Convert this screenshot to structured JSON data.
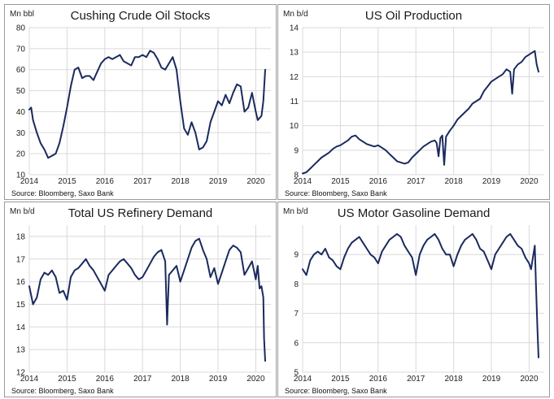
{
  "colors": {
    "line": "#1b2a5e",
    "grid": "#d9d9d9",
    "frame": "#9a9a9a",
    "text": "#222222"
  },
  "chart_data": [
    {
      "type": "line",
      "title": "Cushing Crude Oil Stocks",
      "ylabel": "Mn bbl",
      "source": "Source: Bloomberg, Saxo Bank",
      "xlim": [
        2014,
        2020.4
      ],
      "ylim": [
        10,
        80
      ],
      "yticks": [
        10,
        20,
        30,
        40,
        50,
        60,
        70,
        80
      ],
      "xticks": [
        2014,
        2015,
        2016,
        2017,
        2018,
        2019,
        2020
      ],
      "grid": true,
      "series": [
        {
          "x": [
            2014.0,
            2014.05,
            2014.1,
            2014.2,
            2014.3,
            2014.4,
            2014.45,
            2014.5,
            2014.6,
            2014.7,
            2014.8,
            2014.9,
            2015.0,
            2015.1,
            2015.2,
            2015.3,
            2015.4,
            2015.5,
            2015.6,
            2015.7,
            2015.8,
            2015.9,
            2016.0,
            2016.1,
            2016.2,
            2016.3,
            2016.4,
            2016.5,
            2016.6,
            2016.7,
            2016.8,
            2016.9,
            2017.0,
            2017.1,
            2017.2,
            2017.3,
            2017.4,
            2017.5,
            2017.6,
            2017.7,
            2017.8,
            2017.9,
            2018.0,
            2018.1,
            2018.2,
            2018.3,
            2018.4,
            2018.5,
            2018.6,
            2018.7,
            2018.8,
            2018.9,
            2019.0,
            2019.1,
            2019.2,
            2019.3,
            2019.4,
            2019.5,
            2019.6,
            2019.7,
            2019.8,
            2019.9,
            2020.0,
            2020.05,
            2020.1,
            2020.15,
            2020.2,
            2020.25
          ],
          "y": [
            41,
            42,
            36,
            30,
            25,
            22,
            20,
            18,
            19,
            20,
            25,
            33,
            42,
            52,
            60,
            61,
            56,
            57,
            57,
            55,
            59,
            63,
            65,
            66,
            65,
            66,
            67,
            64,
            63,
            62,
            66,
            66,
            67,
            66,
            69,
            68,
            65,
            61,
            60,
            63,
            66,
            60,
            45,
            32,
            29,
            35,
            30,
            22,
            23,
            26,
            35,
            40,
            45,
            43,
            48,
            44,
            49,
            53,
            52,
            40,
            42,
            49,
            40,
            36,
            37,
            38,
            45,
            60
          ]
        }
      ]
    },
    {
      "type": "line",
      "title": "US Oil Production",
      "ylabel": "Mn b/d",
      "source": "Source: Bloomberg, Saxo Bank",
      "xlim": [
        2014,
        2020.4
      ],
      "ylim": [
        8,
        14
      ],
      "yticks": [
        8,
        9,
        10,
        11,
        12,
        13,
        14
      ],
      "xticks": [
        2014,
        2015,
        2016,
        2017,
        2018,
        2019,
        2020
      ],
      "grid": true,
      "series": [
        {
          "x": [
            2014.0,
            2014.1,
            2014.2,
            2014.3,
            2014.4,
            2014.5,
            2014.6,
            2014.7,
            2014.8,
            2014.9,
            2015.0,
            2015.1,
            2015.2,
            2015.3,
            2015.4,
            2015.5,
            2015.6,
            2015.7,
            2015.8,
            2015.9,
            2016.0,
            2016.1,
            2016.2,
            2016.3,
            2016.4,
            2016.5,
            2016.6,
            2016.7,
            2016.8,
            2016.9,
            2017.0,
            2017.1,
            2017.2,
            2017.3,
            2017.4,
            2017.5,
            2017.55,
            2017.6,
            2017.65,
            2017.7,
            2017.75,
            2017.8,
            2017.9,
            2018.0,
            2018.1,
            2018.2,
            2018.3,
            2018.4,
            2018.5,
            2018.6,
            2018.7,
            2018.8,
            2018.9,
            2019.0,
            2019.1,
            2019.2,
            2019.3,
            2019.4,
            2019.5,
            2019.55,
            2019.6,
            2019.65,
            2019.7,
            2019.8,
            2019.9,
            2020.0,
            2020.1,
            2020.15,
            2020.2,
            2020.25
          ],
          "y": [
            8.05,
            8.1,
            8.25,
            8.4,
            8.55,
            8.7,
            8.8,
            8.9,
            9.05,
            9.15,
            9.2,
            9.3,
            9.4,
            9.55,
            9.6,
            9.45,
            9.35,
            9.25,
            9.2,
            9.15,
            9.2,
            9.1,
            9.0,
            8.85,
            8.7,
            8.55,
            8.5,
            8.45,
            8.5,
            8.7,
            8.85,
            9.0,
            9.15,
            9.25,
            9.35,
            9.4,
            9.3,
            8.75,
            9.5,
            9.6,
            8.4,
            9.55,
            9.8,
            10.0,
            10.25,
            10.4,
            10.55,
            10.7,
            10.9,
            11.0,
            11.1,
            11.4,
            11.6,
            11.8,
            11.9,
            12.0,
            12.1,
            12.3,
            12.2,
            11.3,
            12.3,
            12.4,
            12.5,
            12.6,
            12.8,
            12.9,
            13.0,
            13.05,
            12.5,
            12.2
          ]
        }
      ]
    },
    {
      "type": "line",
      "title": "Total US Refinery Demand",
      "ylabel": "Mn b/d",
      "source": "Source: Bloomberg, Saxo Bank",
      "xlim": [
        2014,
        2020.4
      ],
      "ylim": [
        12,
        18.5
      ],
      "yticks": [
        12,
        13,
        14,
        15,
        16,
        17,
        18
      ],
      "xticks": [
        2014,
        2015,
        2016,
        2017,
        2018,
        2019,
        2020
      ],
      "grid": true,
      "series": [
        {
          "x": [
            2014.0,
            2014.1,
            2014.2,
            2014.3,
            2014.4,
            2014.5,
            2014.6,
            2014.7,
            2014.8,
            2014.9,
            2015.0,
            2015.1,
            2015.2,
            2015.3,
            2015.4,
            2015.5,
            2015.6,
            2015.7,
            2015.8,
            2015.9,
            2016.0,
            2016.1,
            2016.2,
            2016.3,
            2016.4,
            2016.5,
            2016.6,
            2016.7,
            2016.8,
            2016.9,
            2017.0,
            2017.1,
            2017.2,
            2017.3,
            2017.4,
            2017.5,
            2017.6,
            2017.65,
            2017.7,
            2017.8,
            2017.9,
            2018.0,
            2018.1,
            2018.2,
            2018.3,
            2018.4,
            2018.5,
            2018.6,
            2018.7,
            2018.8,
            2018.9,
            2019.0,
            2019.1,
            2019.2,
            2019.3,
            2019.4,
            2019.5,
            2019.6,
            2019.7,
            2019.8,
            2019.9,
            2020.0,
            2020.05,
            2020.1,
            2020.15,
            2020.2,
            2020.22,
            2020.25
          ],
          "y": [
            15.8,
            15.0,
            15.3,
            16.1,
            16.4,
            16.3,
            16.5,
            16.2,
            15.5,
            15.6,
            15.2,
            16.2,
            16.5,
            16.6,
            16.8,
            17.0,
            16.7,
            16.5,
            16.2,
            15.9,
            15.6,
            16.3,
            16.5,
            16.7,
            16.9,
            17.0,
            16.8,
            16.6,
            16.3,
            16.1,
            16.2,
            16.5,
            16.8,
            17.1,
            17.3,
            17.4,
            16.9,
            14.1,
            16.3,
            16.5,
            16.7,
            16.0,
            16.5,
            17.0,
            17.5,
            17.8,
            17.9,
            17.4,
            17.0,
            16.2,
            16.6,
            15.9,
            16.4,
            16.9,
            17.4,
            17.6,
            17.5,
            17.3,
            16.3,
            16.6,
            16.9,
            16.1,
            16.7,
            15.7,
            15.8,
            15.3,
            13.5,
            12.5
          ]
        }
      ]
    },
    {
      "type": "line",
      "title": "US Motor Gasoline Demand",
      "ylabel": "Mn b/d",
      "source": "Source: Bloomberg, Saxo Bank",
      "xlim": [
        2014,
        2020.4
      ],
      "ylim": [
        5,
        10
      ],
      "yticks": [
        5,
        6,
        7,
        8,
        9
      ],
      "xticks": [
        2014,
        2015,
        2016,
        2017,
        2018,
        2019,
        2020
      ],
      "grid": true,
      "series": [
        {
          "x": [
            2014.0,
            2014.1,
            2014.2,
            2014.3,
            2014.4,
            2014.5,
            2014.6,
            2014.7,
            2014.8,
            2014.9,
            2015.0,
            2015.1,
            2015.2,
            2015.3,
            2015.4,
            2015.5,
            2015.6,
            2015.7,
            2015.8,
            2015.9,
            2016.0,
            2016.1,
            2016.2,
            2016.3,
            2016.4,
            2016.5,
            2016.6,
            2016.7,
            2016.8,
            2016.9,
            2017.0,
            2017.1,
            2017.2,
            2017.3,
            2017.4,
            2017.5,
            2017.6,
            2017.7,
            2017.8,
            2017.9,
            2018.0,
            2018.1,
            2018.2,
            2018.3,
            2018.4,
            2018.5,
            2018.6,
            2018.7,
            2018.8,
            2018.9,
            2019.0,
            2019.1,
            2019.2,
            2019.3,
            2019.4,
            2019.5,
            2019.6,
            2019.7,
            2019.8,
            2019.9,
            2020.0,
            2020.05,
            2020.1,
            2020.15,
            2020.18,
            2020.22,
            2020.25
          ],
          "y": [
            8.5,
            8.3,
            8.8,
            9.0,
            9.1,
            9.0,
            9.2,
            8.9,
            8.8,
            8.6,
            8.5,
            8.9,
            9.2,
            9.4,
            9.5,
            9.6,
            9.4,
            9.2,
            9.0,
            8.9,
            8.7,
            9.1,
            9.3,
            9.5,
            9.6,
            9.7,
            9.6,
            9.3,
            9.1,
            8.9,
            8.3,
            9.0,
            9.3,
            9.5,
            9.6,
            9.7,
            9.5,
            9.2,
            9.0,
            9.0,
            8.6,
            9.0,
            9.3,
            9.5,
            9.6,
            9.7,
            9.5,
            9.2,
            9.1,
            8.8,
            8.5,
            9.0,
            9.2,
            9.4,
            9.6,
            9.7,
            9.5,
            9.3,
            9.2,
            8.9,
            8.7,
            8.5,
            8.9,
            9.3,
            8.0,
            6.5,
            5.5
          ]
        }
      ]
    }
  ]
}
